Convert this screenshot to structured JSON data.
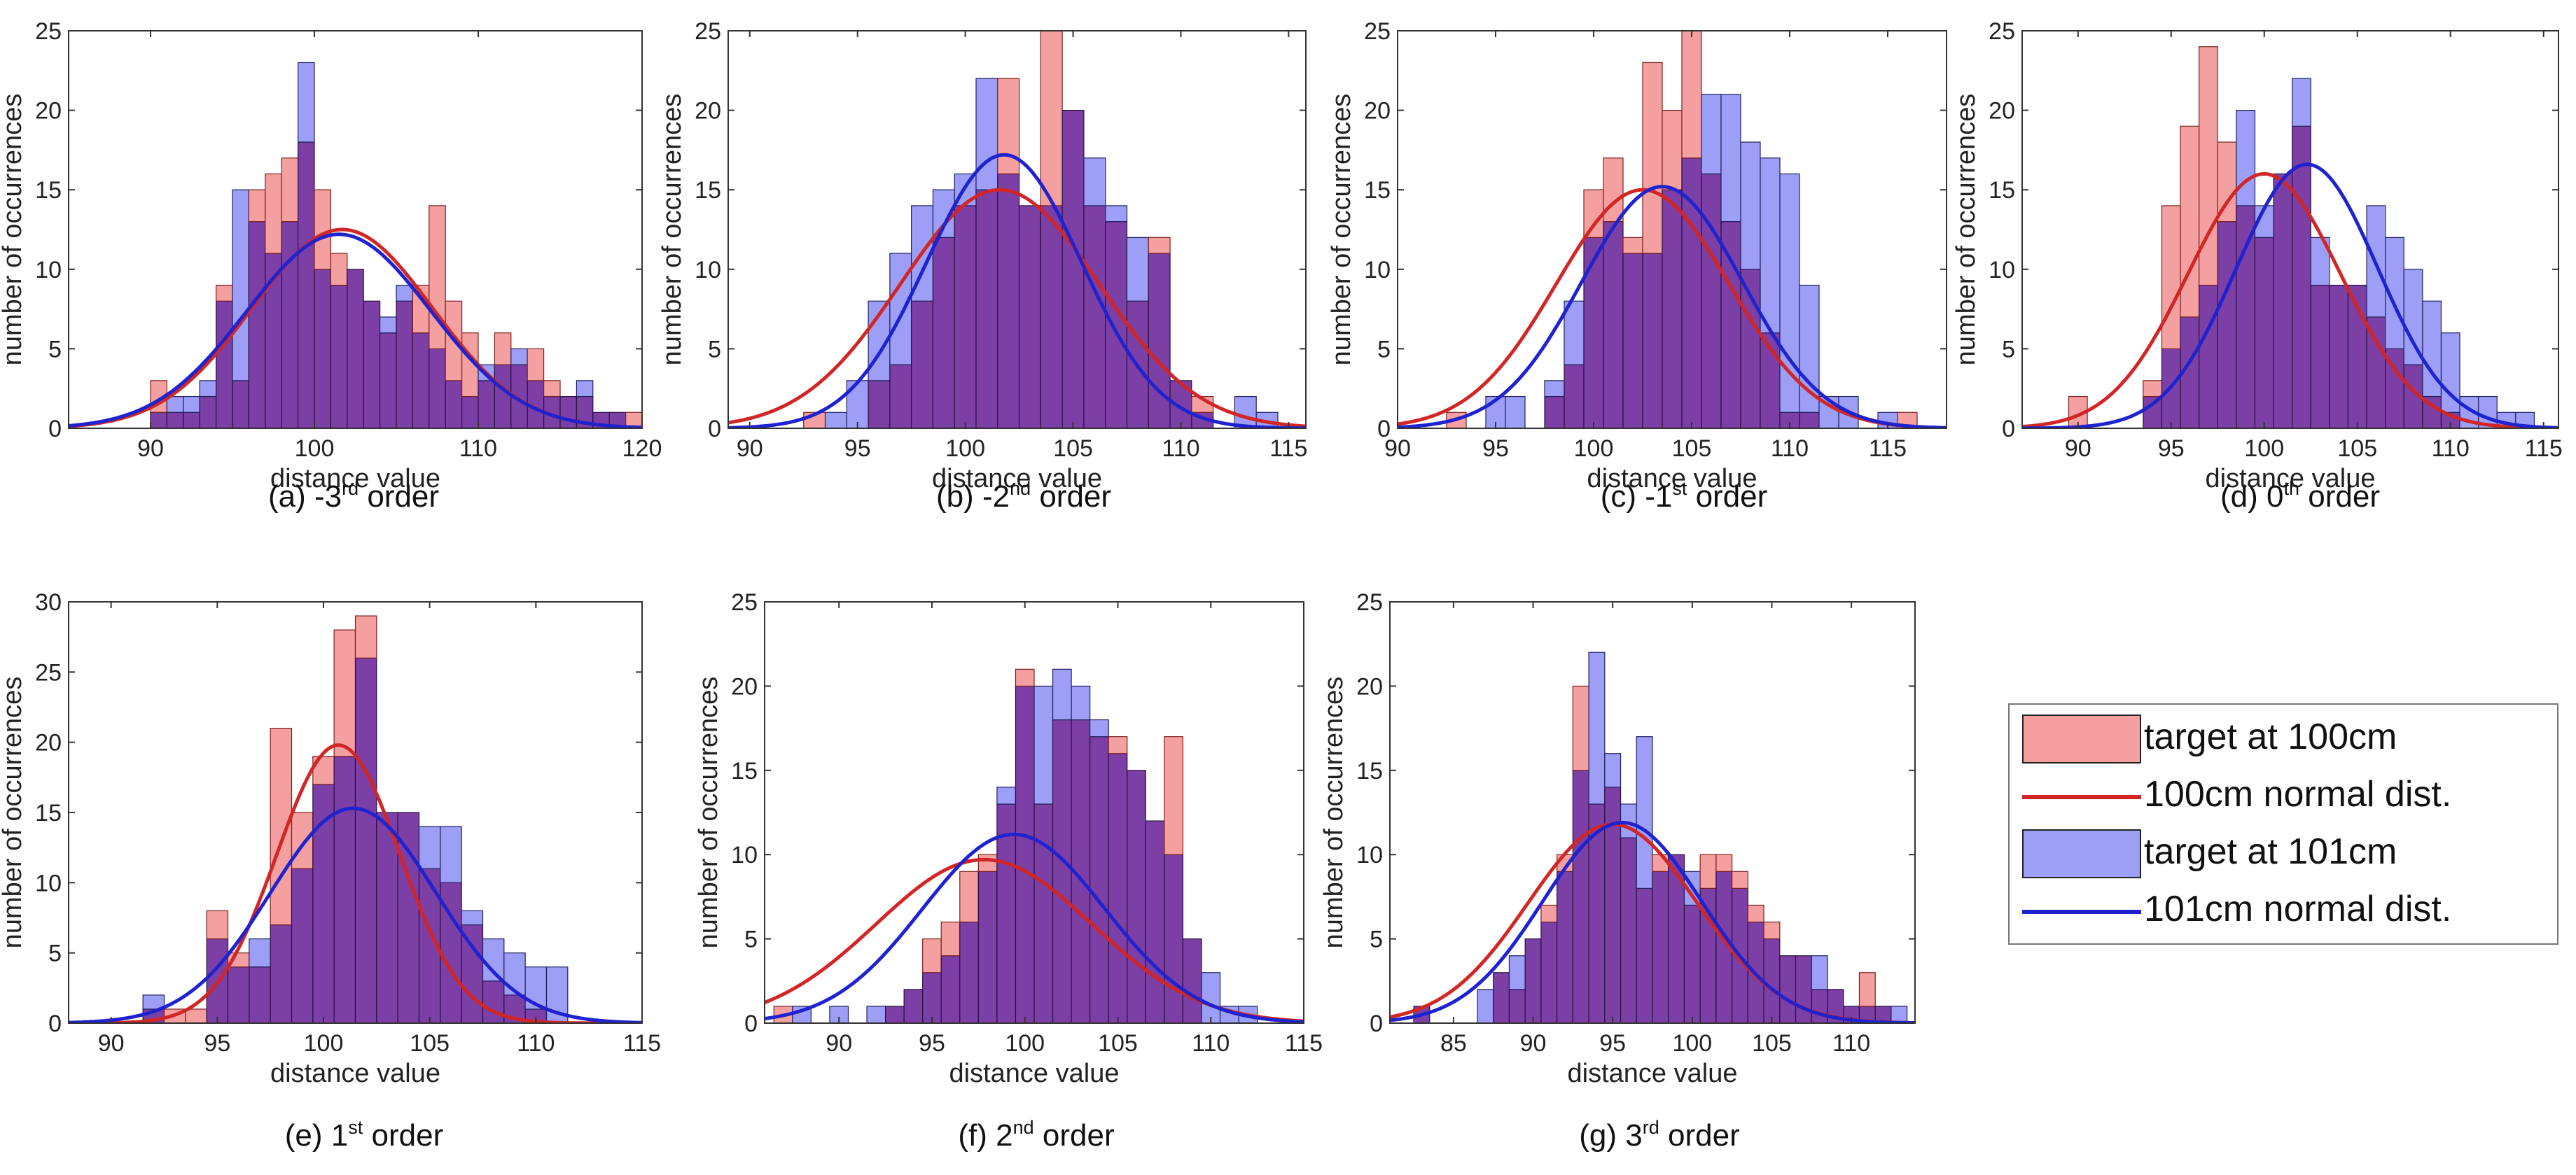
{
  "colors": {
    "red_bar": "#f06a6a",
    "red_edge": "#7a1f1f",
    "blue_bar": "#6f73f2",
    "blue_edge": "#202060",
    "overlap": "#7b3fa5",
    "red_line": "#d22626",
    "blue_line": "#1e22cf",
    "axis": "#333333"
  },
  "legend": {
    "items": [
      {
        "label": "target at 100cm",
        "kind": "bar",
        "series": "red"
      },
      {
        "label": "100cm normal dist.",
        "kind": "line",
        "series": "red"
      },
      {
        "label": "target at 101cm",
        "kind": "bar",
        "series": "blue"
      },
      {
        "label": "101cm normal dist.",
        "kind": "line",
        "series": "blue"
      }
    ]
  },
  "chart_data": [
    {
      "type": "histogram",
      "id": "a",
      "caption": {
        "prefix": "(a) -3",
        "sup": "rd",
        "suffix": " order"
      },
      "xlabel": "distance value",
      "ylabel": "number of occurrences",
      "xlim": [
        85,
        120
      ],
      "ylim": [
        0,
        25
      ],
      "xticks": [
        90,
        100,
        110,
        120
      ],
      "yticks": [
        0,
        5,
        10,
        15,
        20,
        25
      ],
      "bin_start": 90,
      "bin_width": 1,
      "series": [
        {
          "name": "target at 100cm",
          "counts": [
            3,
            1,
            1,
            2,
            9,
            3,
            15,
            16,
            17,
            18,
            15,
            11,
            10,
            8,
            6,
            8,
            9,
            14,
            8,
            6,
            3,
            6,
            4,
            5,
            3,
            2,
            2,
            1,
            1,
            1
          ]
        },
        {
          "name": "target at 101cm",
          "counts": [
            1,
            2,
            2,
            3,
            8,
            15,
            13,
            11,
            13,
            23,
            10,
            9,
            10,
            8,
            7,
            9,
            6,
            5,
            3,
            2,
            4,
            4,
            5,
            3,
            2,
            2,
            3,
            1,
            1,
            0
          ]
        }
      ],
      "fits": [
        {
          "name": "100cm normal dist.",
          "mean": 101.7,
          "std": 5.5,
          "peak": 12.5
        },
        {
          "name": "101cm normal dist.",
          "mean": 101.5,
          "std": 5.6,
          "peak": 12.2
        }
      ]
    },
    {
      "type": "histogram",
      "id": "b",
      "caption": {
        "prefix": "(b) -2",
        "sup": "nd",
        "suffix": " order"
      },
      "xlabel": "distance value",
      "ylabel": "number of occurrences",
      "xlim": [
        89,
        115.8
      ],
      "ylim": [
        0,
        25
      ],
      "xticks": [
        90,
        95,
        100,
        105,
        110,
        115
      ],
      "yticks": [
        0,
        5,
        10,
        15,
        20,
        25
      ],
      "bin_start": 92.5,
      "bin_width": 1,
      "series": [
        {
          "name": "target at 100cm",
          "counts": [
            1,
            0,
            0,
            3,
            4,
            8,
            12,
            14,
            15,
            22,
            14,
            25,
            20,
            14,
            13,
            8,
            12,
            3,
            2,
            0,
            0,
            0
          ]
        },
        {
          "name": "target at 101cm",
          "counts": [
            0,
            1,
            3,
            8,
            11,
            14,
            15,
            16,
            22,
            16,
            14,
            14,
            20,
            17,
            14,
            12,
            11,
            3,
            1,
            0,
            2,
            1
          ]
        }
      ],
      "fits": [
        {
          "name": "100cm normal dist.",
          "mean": 101.6,
          "std": 4.6,
          "peak": 15
        },
        {
          "name": "101cm normal dist.",
          "mean": 101.8,
          "std": 3.6,
          "peak": 17.2
        }
      ]
    },
    {
      "type": "histogram",
      "id": "c",
      "caption": {
        "prefix": "(c) -1",
        "sup": "st",
        "suffix": " order"
      },
      "xlabel": "distance value",
      "ylabel": "number of occurrences",
      "xlim": [
        90,
        118
      ],
      "ylim": [
        0,
        25
      ],
      "xticks": [
        90,
        95,
        100,
        105,
        110,
        115
      ],
      "yticks": [
        0,
        5,
        10,
        15,
        20,
        25
      ],
      "bin_start": 92.5,
      "bin_width": 1,
      "series": [
        {
          "name": "target at 100cm",
          "counts": [
            1,
            0,
            0,
            0,
            0,
            2,
            4,
            15,
            17,
            12,
            23,
            20,
            25,
            16,
            13,
            10,
            6,
            1,
            1,
            0,
            0,
            0,
            0,
            1
          ]
        },
        {
          "name": "target at 101cm",
          "counts": [
            0,
            0,
            2,
            2,
            0,
            3,
            8,
            12,
            13,
            11,
            11,
            15,
            17,
            21,
            21,
            18,
            17,
            16,
            9,
            2,
            2,
            0,
            1,
            0
          ]
        }
      ],
      "fits": [
        {
          "name": "100cm normal dist.",
          "mean": 102.5,
          "std": 4.4,
          "peak": 15
        },
        {
          "name": "101cm normal dist.",
          "mean": 103.5,
          "std": 4.1,
          "peak": 15.2
        }
      ]
    },
    {
      "type": "histogram",
      "id": "d",
      "caption": {
        "prefix": "(d) 0",
        "sup": "th",
        "suffix": " order"
      },
      "xlabel": "distance value",
      "ylabel": "number of occurrences",
      "xlim": [
        87,
        115.8
      ],
      "ylim": [
        0,
        25
      ],
      "xticks": [
        90,
        95,
        100,
        105,
        110,
        115
      ],
      "yticks": [
        0,
        5,
        10,
        15,
        20,
        25
      ],
      "bin_start": 89.5,
      "bin_width": 1,
      "series": [
        {
          "name": "target at 100cm",
          "counts": [
            2,
            0,
            0,
            0,
            3,
            14,
            19,
            24,
            18,
            14,
            12,
            16,
            19,
            9,
            9,
            9,
            7,
            5,
            4,
            2,
            1,
            0,
            0,
            0,
            0
          ]
        },
        {
          "name": "target at 101cm",
          "counts": [
            0,
            0,
            0,
            0,
            2,
            5,
            7,
            9,
            13,
            20,
            14,
            16,
            22,
            12,
            9,
            9,
            14,
            12,
            10,
            8,
            6,
            2,
            2,
            1,
            1
          ]
        }
      ],
      "fits": [
        {
          "name": "100cm normal dist.",
          "mean": 100.0,
          "std": 4.1,
          "peak": 16
        },
        {
          "name": "101cm normal dist.",
          "mean": 102.3,
          "std": 3.8,
          "peak": 16.6
        }
      ]
    },
    {
      "type": "histogram",
      "id": "e",
      "caption": {
        "prefix": "(e) 1",
        "sup": "st",
        "suffix": " order"
      },
      "xlabel": "distance value",
      "ylabel": "number of occurrences",
      "xlim": [
        88,
        115
      ],
      "ylim": [
        0,
        30
      ],
      "xticks": [
        90,
        95,
        100,
        105,
        110,
        115
      ],
      "yticks": [
        0,
        5,
        10,
        15,
        20,
        25,
        30
      ],
      "bin_start": 91.5,
      "bin_width": 1,
      "series": [
        {
          "name": "target at 100cm",
          "counts": [
            1,
            1,
            1,
            8,
            5,
            4,
            21,
            15,
            19,
            28,
            29,
            15,
            15,
            11,
            10,
            7,
            3,
            2,
            1,
            0
          ]
        },
        {
          "name": "target at 101cm",
          "counts": [
            2,
            0,
            0,
            6,
            4,
            6,
            7,
            11,
            17,
            19,
            26,
            15,
            15,
            14,
            14,
            8,
            6,
            5,
            4,
            4
          ]
        }
      ],
      "fits": [
        {
          "name": "100cm normal dist.",
          "mean": 100.7,
          "std": 2.9,
          "peak": 19.8
        },
        {
          "name": "101cm normal dist.",
          "mean": 101.4,
          "std": 3.9,
          "peak": 15.3
        }
      ]
    },
    {
      "type": "histogram",
      "id": "f",
      "caption": {
        "prefix": "(f) 2",
        "sup": "nd",
        "suffix": " order"
      },
      "xlabel": "distance value",
      "ylabel": "number of occurrences",
      "xlim": [
        86,
        115
      ],
      "ylim": [
        0,
        25
      ],
      "xticks": [
        90,
        95,
        100,
        105,
        110,
        115
      ],
      "yticks": [
        0,
        5,
        10,
        15,
        20,
        25
      ],
      "bin_start": 86.5,
      "bin_width": 1,
      "series": [
        {
          "name": "target at 100cm",
          "counts": [
            1,
            0,
            0,
            0,
            0,
            0,
            1,
            2,
            5,
            6,
            9,
            10,
            13,
            21,
            13,
            18,
            18,
            17,
            17,
            15,
            12,
            17,
            5,
            0,
            0,
            0
          ]
        },
        {
          "name": "target at 101cm",
          "counts": [
            0,
            1,
            0,
            1,
            0,
            1,
            1,
            2,
            3,
            4,
            6,
            9,
            14,
            20,
            20,
            21,
            20,
            18,
            16,
            15,
            12,
            10,
            5,
            3,
            1,
            1
          ]
        }
      ],
      "fits": [
        {
          "name": "100cm normal dist.",
          "mean": 97.8,
          "std": 5.8,
          "peak": 9.7
        },
        {
          "name": "101cm normal dist.",
          "mean": 99.4,
          "std": 4.9,
          "peak": 11.2
        }
      ]
    },
    {
      "type": "histogram",
      "id": "g",
      "caption": {
        "prefix": "(g) 3",
        "sup": "rd",
        "suffix": " order"
      },
      "xlabel": "distance value",
      "ylabel": "number of occurrences",
      "xlim": [
        81,
        114
      ],
      "ylim": [
        0,
        25
      ],
      "xticks": [
        85,
        90,
        95,
        100,
        105,
        110
      ],
      "yticks": [
        0,
        5,
        10,
        15,
        20,
        25
      ],
      "bin_start": 82.5,
      "bin_width": 1,
      "series": [
        {
          "name": "target at 100cm",
          "counts": [
            1,
            0,
            0,
            0,
            0,
            3,
            2,
            5,
            7,
            10,
            20,
            13,
            14,
            11,
            8,
            10,
            10,
            7,
            10,
            10,
            9,
            7,
            6,
            4,
            4,
            2,
            2,
            1,
            3,
            1,
            0
          ]
        },
        {
          "name": "target at 101cm",
          "counts": [
            1,
            0,
            0,
            0,
            2,
            3,
            4,
            5,
            6,
            9,
            15,
            22,
            16,
            13,
            17,
            9,
            10,
            9,
            8,
            9,
            8,
            6,
            5,
            4,
            4,
            4,
            2,
            1,
            1,
            1,
            1
          ]
        }
      ],
      "fits": [
        {
          "name": "100cm normal dist.",
          "mean": 95.0,
          "std": 5.3,
          "peak": 11.8
        },
        {
          "name": "101cm normal dist.",
          "mean": 95.6,
          "std": 5.0,
          "peak": 11.9
        }
      ]
    }
  ]
}
